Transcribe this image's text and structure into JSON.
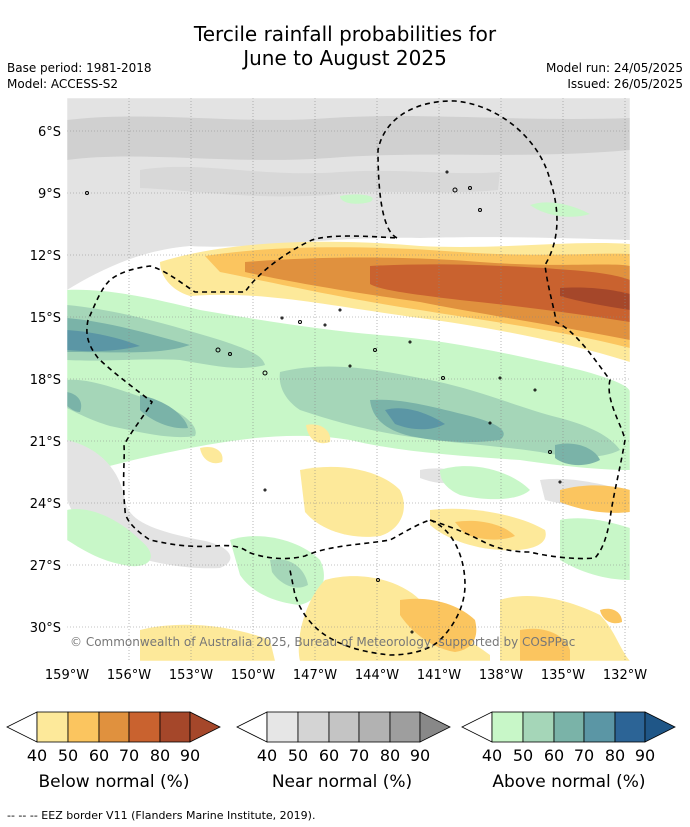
{
  "title_line1": "Tercile rainfall probabilities for",
  "title_line2": "June to August 2025",
  "base_period": "Base period: 1981-2018",
  "model": "Model: ACCESS-S2",
  "model_run": "Model run: 24/05/2025",
  "issued": "Issued: 26/05/2025",
  "copyright": "© Commonwealth of Australia 2025, Bureau of Meteorology, supported by COSPPac",
  "lat_labels": [
    "6°S",
    "9°S",
    "12°S",
    "15°S",
    "18°S",
    "21°S",
    "24°S",
    "27°S",
    "30°S"
  ],
  "lon_labels": [
    "159°W",
    "156°W",
    "153°W",
    "150°W",
    "147°W",
    "144°W",
    "141°W",
    "138°W",
    "135°W",
    "132°W"
  ],
  "legends": [
    {
      "label": "Below normal (%)",
      "ticks": [
        "40",
        "50",
        "60",
        "70",
        "80",
        "90"
      ],
      "colors": [
        "#fde99a",
        "#fbc55f",
        "#e0913e",
        "#c9622f",
        "#a5472a",
        "#a5472a"
      ]
    },
    {
      "label": "Near normal (%)",
      "ticks": [
        "40",
        "50",
        "60",
        "70",
        "80",
        "90"
      ],
      "colors": [
        "#e6e6e6",
        "#d4d4d4",
        "#c4c4c4",
        "#b2b2b2",
        "#9e9e9e",
        "#888888"
      ]
    },
    {
      "label": "Above normal (%)",
      "ticks": [
        "40",
        "50",
        "60",
        "70",
        "80",
        "90"
      ],
      "colors": [
        "#c8f7c8",
        "#a5d6b8",
        "#7ab3a8",
        "#5b96a5",
        "#2c6496",
        "#1f5687"
      ]
    }
  ],
  "footnote": "--  --  -- EEZ border V11 (Flanders Marine Institute, 2019)."
}
